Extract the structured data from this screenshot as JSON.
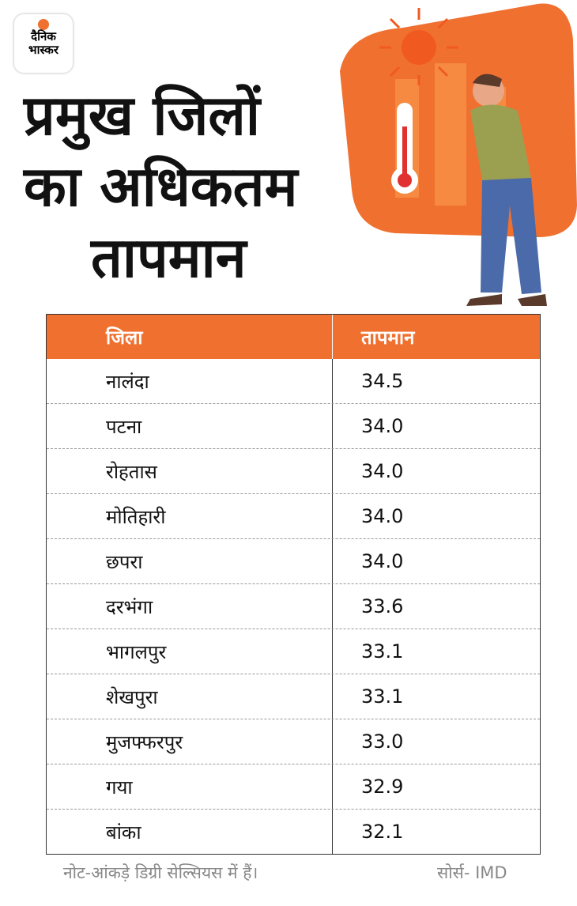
{
  "logo": {
    "line1": "दैनिक",
    "line2": "भास्कर"
  },
  "header": {
    "title_lines": [
      "प्रमुख जिलों",
      "का अधिकतम",
      "तापमान"
    ]
  },
  "table": {
    "columns": [
      "जिला",
      "तापमान"
    ],
    "rows": [
      [
        "नालंदा",
        "34.5"
      ],
      [
        "पटना",
        "34.0"
      ],
      [
        "रोहतास",
        "34.0"
      ],
      [
        "मोतिहारी",
        "34.0"
      ],
      [
        "छपरा",
        "34.0"
      ],
      [
        "दरभंगा",
        "33.6"
      ],
      [
        "भागलपुर",
        "33.1"
      ],
      [
        "शेखपुरा",
        "33.1"
      ],
      [
        "मुजफ्फरपुर",
        "33.0"
      ],
      [
        "गया",
        "32.9"
      ],
      [
        "बांका",
        "32.1"
      ]
    ]
  },
  "footer": {
    "note": "नोट-आंकड़े डिग्री सेल्सियस में हैं।",
    "source": "सोर्स- IMD"
  }
}
